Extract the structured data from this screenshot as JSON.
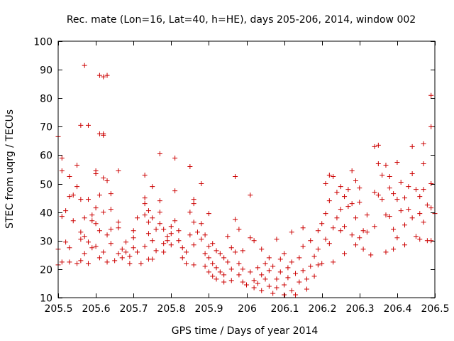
{
  "chart_data": {
    "type": "scatter",
    "title": "Rec. mate (Lon=16, Lat=40, h=HE), days 205-206, 2014, window 002",
    "xlabel": "GPS time / Days of year 2014",
    "ylabel": "STEC from uqrg / TECUs",
    "xlim": [
      205.5,
      206.5
    ],
    "ylim": [
      10,
      100
    ],
    "xticks": [
      205.5,
      205.6,
      205.7,
      205.8,
      205.9,
      206,
      206.1,
      206.2,
      206.3,
      206.4,
      206.5
    ],
    "xtick_labels": [
      "205.5",
      "205.6",
      "205.7",
      "205.8",
      "205.9",
      "206",
      "206.1",
      "206.2",
      "206.3",
      "206.4",
      "206.5"
    ],
    "yticks": [
      10,
      20,
      30,
      40,
      50,
      60,
      70,
      80,
      90,
      100
    ],
    "ytick_labels": [
      "10",
      "20",
      "30",
      "40",
      "50",
      "60",
      "70",
      "80",
      "90",
      "100"
    ],
    "marker": "+",
    "color": "#cc0000",
    "series": [
      {
        "name": "STEC",
        "points": [
          [
            205.5,
            66.5
          ],
          [
            205.51,
            59.0
          ],
          [
            205.51,
            54.5
          ],
          [
            205.52,
            40.5
          ],
          [
            205.51,
            38.5
          ],
          [
            205.52,
            29.5
          ],
          [
            205.5,
            27.0
          ],
          [
            205.51,
            22.5
          ],
          [
            205.5,
            21.5
          ],
          [
            205.53,
            52.5
          ],
          [
            205.53,
            45.5
          ],
          [
            205.54,
            46.0
          ],
          [
            205.55,
            49.0
          ],
          [
            205.55,
            56.5
          ],
          [
            205.54,
            37.0
          ],
          [
            205.53,
            27.5
          ],
          [
            205.53,
            22.5
          ],
          [
            205.55,
            22.0
          ],
          [
            205.56,
            70.5
          ],
          [
            205.56,
            44.5
          ],
          [
            205.56,
            33.0
          ],
          [
            205.56,
            30.5
          ],
          [
            205.57,
            31.5
          ],
          [
            205.57,
            38.0
          ],
          [
            205.56,
            23.0
          ],
          [
            205.57,
            91.5
          ],
          [
            205.57,
            25.5
          ],
          [
            205.58,
            70.5
          ],
          [
            205.58,
            44.5
          ],
          [
            205.59,
            39.0
          ],
          [
            205.59,
            37.0
          ],
          [
            205.58,
            29.5
          ],
          [
            205.59,
            27.5
          ],
          [
            205.58,
            22.0
          ],
          [
            205.6,
            53.5
          ],
          [
            205.6,
            54.5
          ],
          [
            205.61,
            46.0
          ],
          [
            205.6,
            41.5
          ],
          [
            205.6,
            36.0
          ],
          [
            205.61,
            33.5
          ],
          [
            205.6,
            28.0
          ],
          [
            205.61,
            24.0
          ],
          [
            205.61,
            88.0
          ],
          [
            205.62,
            67.5
          ],
          [
            205.62,
            67.0
          ],
          [
            205.61,
            67.5
          ],
          [
            205.62,
            87.5
          ],
          [
            205.63,
            88.0
          ],
          [
            205.62,
            52.0
          ],
          [
            205.63,
            51.0
          ],
          [
            205.62,
            40.0
          ],
          [
            205.63,
            32.0
          ],
          [
            205.62,
            26.0
          ],
          [
            205.63,
            22.5
          ],
          [
            205.64,
            46.5
          ],
          [
            205.64,
            41.0
          ],
          [
            205.64,
            34.0
          ],
          [
            205.64,
            29.0
          ],
          [
            205.65,
            23.0
          ],
          [
            205.66,
            54.5
          ],
          [
            205.66,
            36.5
          ],
          [
            205.66,
            34.5
          ],
          [
            205.67,
            27.0
          ],
          [
            205.66,
            25.5
          ],
          [
            205.67,
            24.0
          ],
          [
            205.68,
            29.5
          ],
          [
            205.68,
            26.0
          ],
          [
            205.69,
            22.0
          ],
          [
            205.69,
            24.5
          ],
          [
            205.7,
            27.5
          ],
          [
            205.7,
            31.0
          ],
          [
            205.7,
            33.5
          ],
          [
            205.71,
            38.0
          ],
          [
            205.71,
            26.0
          ],
          [
            205.72,
            22.0
          ],
          [
            205.73,
            53.0
          ],
          [
            205.73,
            45.0
          ],
          [
            205.73,
            43.0
          ],
          [
            205.74,
            40.5
          ],
          [
            205.73,
            39.0
          ],
          [
            205.74,
            36.5
          ],
          [
            205.74,
            32.5
          ],
          [
            205.73,
            28.0
          ],
          [
            205.74,
            23.5
          ],
          [
            205.75,
            49.0
          ],
          [
            205.75,
            38.0
          ],
          [
            205.76,
            34.0
          ],
          [
            205.75,
            30.0
          ],
          [
            205.76,
            26.5
          ],
          [
            205.75,
            23.5
          ],
          [
            205.77,
            60.5
          ],
          [
            205.77,
            44.0
          ],
          [
            205.77,
            40.0
          ],
          [
            205.77,
            36.0
          ],
          [
            205.78,
            34.0
          ],
          [
            205.78,
            29.0
          ],
          [
            205.78,
            26.0
          ],
          [
            205.79,
            30.0
          ],
          [
            205.79,
            31.5
          ],
          [
            205.8,
            35.0
          ],
          [
            205.8,
            32.5
          ],
          [
            205.8,
            28.5
          ],
          [
            205.81,
            59.0
          ],
          [
            205.81,
            47.5
          ],
          [
            205.81,
            37.0
          ],
          [
            205.82,
            33.5
          ],
          [
            205.82,
            30.0
          ],
          [
            205.83,
            27.5
          ],
          [
            205.83,
            24.0
          ],
          [
            205.84,
            22.0
          ],
          [
            205.84,
            26.0
          ],
          [
            205.85,
            56.0
          ],
          [
            205.85,
            40.0
          ],
          [
            205.86,
            44.5
          ],
          [
            205.86,
            43.0
          ],
          [
            205.86,
            36.5
          ],
          [
            205.85,
            32.0
          ],
          [
            205.86,
            28.5
          ],
          [
            205.86,
            21.5
          ],
          [
            205.87,
            33.0
          ],
          [
            205.88,
            50.0
          ],
          [
            205.88,
            36.0
          ],
          [
            205.88,
            30.5
          ],
          [
            205.89,
            32.0
          ],
          [
            205.89,
            25.5
          ],
          [
            205.89,
            21.0
          ],
          [
            205.9,
            39.5
          ],
          [
            205.9,
            28.0
          ],
          [
            205.9,
            24.0
          ],
          [
            205.9,
            19.0
          ],
          [
            205.91,
            29.0
          ],
          [
            205.91,
            22.0
          ],
          [
            205.91,
            17.5
          ],
          [
            205.92,
            26.5
          ],
          [
            205.92,
            20.5
          ],
          [
            205.92,
            16.5
          ],
          [
            205.93,
            25.5
          ],
          [
            205.93,
            19.0
          ],
          [
            205.94,
            24.0
          ],
          [
            205.94,
            18.0
          ],
          [
            205.94,
            15.5
          ],
          [
            205.95,
            22.5
          ],
          [
            205.95,
            31.5
          ],
          [
            205.96,
            27.5
          ],
          [
            205.96,
            20.0
          ],
          [
            205.96,
            16.0
          ],
          [
            205.97,
            52.5
          ],
          [
            205.97,
            37.5
          ],
          [
            205.97,
            26.0
          ],
          [
            205.98,
            34.0
          ],
          [
            205.98,
            22.0
          ],
          [
            205.98,
            18.0
          ],
          [
            205.99,
            26.5
          ],
          [
            205.99,
            20.0
          ],
          [
            205.99,
            15.5
          ],
          [
            206.0,
            14.5
          ],
          [
            206.01,
            46.0
          ],
          [
            206.01,
            31.0
          ],
          [
            206.02,
            30.0
          ],
          [
            206.01,
            19.0
          ],
          [
            206.02,
            16.0
          ],
          [
            206.02,
            13.5
          ],
          [
            206.03,
            20.5
          ],
          [
            206.03,
            15.0
          ],
          [
            206.04,
            27.0
          ],
          [
            206.04,
            18.0
          ],
          [
            206.04,
            12.5
          ],
          [
            206.05,
            22.0
          ],
          [
            206.05,
            16.5
          ],
          [
            206.06,
            24.0
          ],
          [
            206.06,
            19.5
          ],
          [
            206.06,
            14.0
          ],
          [
            206.07,
            21.0
          ],
          [
            206.07,
            11.5
          ],
          [
            206.08,
            30.5
          ],
          [
            206.08,
            16.5
          ],
          [
            206.08,
            13.5
          ],
          [
            206.09,
            23.5
          ],
          [
            206.09,
            19.0
          ],
          [
            206.1,
            25.5
          ],
          [
            206.1,
            14.5
          ],
          [
            206.1,
            11.0
          ],
          [
            206.11,
            20.5
          ],
          [
            206.11,
            17.0
          ],
          [
            206.12,
            33.0
          ],
          [
            206.12,
            22.5
          ],
          [
            206.12,
            12.5
          ],
          [
            206.13,
            18.5
          ],
          [
            206.13,
            11.0
          ],
          [
            206.14,
            24.0
          ],
          [
            206.14,
            15.5
          ],
          [
            206.15,
            34.5
          ],
          [
            206.15,
            28.0
          ],
          [
            206.15,
            19.5
          ],
          [
            206.16,
            16.5
          ],
          [
            206.16,
            13.0
          ],
          [
            206.17,
            30.0
          ],
          [
            206.17,
            21.0
          ],
          [
            206.18,
            24.5
          ],
          [
            206.18,
            17.5
          ],
          [
            206.19,
            33.5
          ],
          [
            206.19,
            27.0
          ],
          [
            206.19,
            21.5
          ],
          [
            206.2,
            36.0
          ],
          [
            206.2,
            22.0
          ],
          [
            206.21,
            50.0
          ],
          [
            206.21,
            39.5
          ],
          [
            206.21,
            30.5
          ],
          [
            206.22,
            53.0
          ],
          [
            206.22,
            44.0
          ],
          [
            206.22,
            29.0
          ],
          [
            206.23,
            52.5
          ],
          [
            206.23,
            34.5
          ],
          [
            206.23,
            22.5
          ],
          [
            206.24,
            47.0
          ],
          [
            206.24,
            38.0
          ],
          [
            206.25,
            49.0
          ],
          [
            206.25,
            41.0
          ],
          [
            206.25,
            33.5
          ],
          [
            206.26,
            45.5
          ],
          [
            206.26,
            35.0
          ],
          [
            206.26,
            25.5
          ],
          [
            206.27,
            48.0
          ],
          [
            206.27,
            42.0
          ],
          [
            206.28,
            54.5
          ],
          [
            206.28,
            43.0
          ],
          [
            206.28,
            32.0
          ],
          [
            206.29,
            51.0
          ],
          [
            206.29,
            38.0
          ],
          [
            206.29,
            28.5
          ],
          [
            206.3,
            48.5
          ],
          [
            206.3,
            43.5
          ],
          [
            206.3,
            31.0
          ],
          [
            206.31,
            33.5
          ],
          [
            206.31,
            27.0
          ],
          [
            206.32,
            39.0
          ],
          [
            206.32,
            33.0
          ],
          [
            206.33,
            25.0
          ],
          [
            206.34,
            47.0
          ],
          [
            206.34,
            35.0
          ],
          [
            206.34,
            63.0
          ],
          [
            206.35,
            57.0
          ],
          [
            206.35,
            46.0
          ],
          [
            206.35,
            63.5
          ],
          [
            206.36,
            53.0
          ],
          [
            206.36,
            44.5
          ],
          [
            206.37,
            56.5
          ],
          [
            206.37,
            39.0
          ],
          [
            206.37,
            26.0
          ],
          [
            206.38,
            52.5
          ],
          [
            206.38,
            48.5
          ],
          [
            206.38,
            38.5
          ],
          [
            206.39,
            46.5
          ],
          [
            206.39,
            34.0
          ],
          [
            206.39,
            27.0
          ],
          [
            206.4,
            57.5
          ],
          [
            206.4,
            44.5
          ],
          [
            206.4,
            31.0
          ],
          [
            206.41,
            50.5
          ],
          [
            206.41,
            40.5
          ],
          [
            206.42,
            45.0
          ],
          [
            206.42,
            35.5
          ],
          [
            206.42,
            28.5
          ],
          [
            206.43,
            49.0
          ],
          [
            206.43,
            41.0
          ],
          [
            206.44,
            63.0
          ],
          [
            206.44,
            53.5
          ],
          [
            206.44,
            38.0
          ],
          [
            206.45,
            48.0
          ],
          [
            206.45,
            31.5
          ],
          [
            206.46,
            45.5
          ],
          [
            206.46,
            39.5
          ],
          [
            206.46,
            30.5
          ],
          [
            206.47,
            64.0
          ],
          [
            206.47,
            57.0
          ],
          [
            206.47,
            48.0
          ],
          [
            206.47,
            36.5
          ],
          [
            206.48,
            42.5
          ],
          [
            206.48,
            30.0
          ],
          [
            206.49,
            81.0
          ],
          [
            206.49,
            70.0
          ],
          [
            206.49,
            50.0
          ],
          [
            206.49,
            41.5
          ],
          [
            206.5,
            39.5
          ],
          [
            206.49,
            30.0
          ]
        ]
      }
    ]
  }
}
